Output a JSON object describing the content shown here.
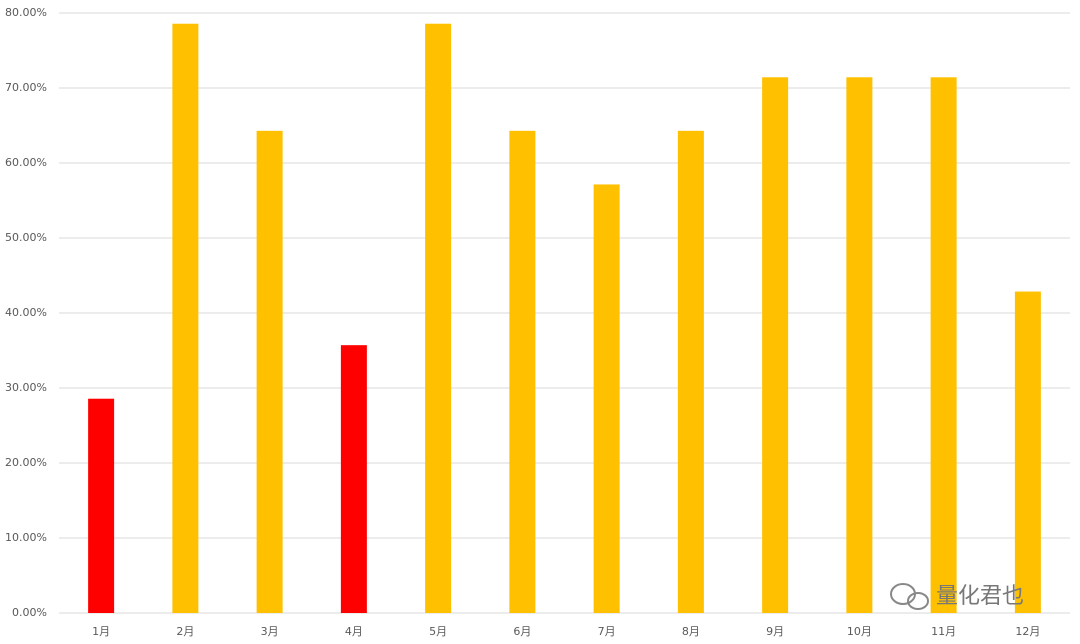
{
  "chart_data": {
    "type": "bar",
    "categories": [
      "1月",
      "2月",
      "3月",
      "4月",
      "5月",
      "6月",
      "7月",
      "8月",
      "9月",
      "10月",
      "11月",
      "12月"
    ],
    "values": [
      28.57,
      78.57,
      64.29,
      35.71,
      78.57,
      64.29,
      57.14,
      64.29,
      71.43,
      71.43,
      71.43,
      42.86
    ],
    "colors": [
      "#ff0000",
      "#ffc000",
      "#ffc000",
      "#ff0000",
      "#ffc000",
      "#ffc000",
      "#ffc000",
      "#ffc000",
      "#ffc000",
      "#ffc000",
      "#ffc000",
      "#ffc000"
    ],
    "ylim": [
      0,
      80
    ],
    "yticks": [
      {
        "value": 0,
        "label": "0.00%"
      },
      {
        "value": 10,
        "label": "10.00%"
      },
      {
        "value": 20,
        "label": "20.00%"
      },
      {
        "value": 30,
        "label": "30.00%"
      },
      {
        "value": 40,
        "label": "40.00%"
      },
      {
        "value": 50,
        "label": "50.00%"
      },
      {
        "value": 60,
        "label": "60.00%"
      },
      {
        "value": 70,
        "label": "70.00%"
      },
      {
        "value": 80,
        "label": "80.00%"
      }
    ],
    "grid": true,
    "watermark": "量化君也"
  }
}
